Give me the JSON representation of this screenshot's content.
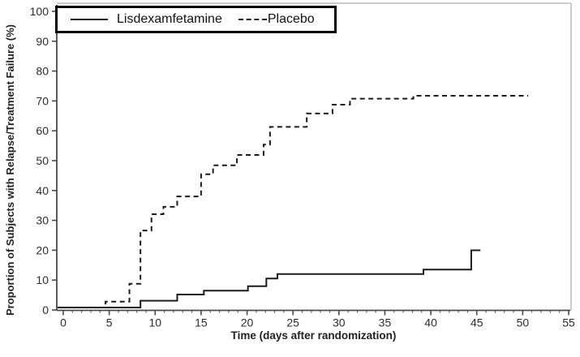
{
  "chart_data": {
    "type": "line",
    "subtype": "kaplan-meier-step",
    "title": "",
    "xlabel": "Time (days after randomization)",
    "ylabel": "Proportion of Subjects with Relapse/Treatment Failure (%)",
    "xlim": [
      0,
      55
    ],
    "ylim": [
      0,
      100
    ],
    "x_ticks": [
      0,
      5,
      10,
      15,
      20,
      25,
      30,
      35,
      40,
      45,
      50,
      55
    ],
    "x_minor_tick_step": 1,
    "y_ticks": [
      0,
      10,
      20,
      30,
      40,
      50,
      60,
      70,
      80,
      90,
      100
    ],
    "grid": false,
    "legend_position": "top-left-inside",
    "axis_color": "#4a4a4a",
    "tick_label_color": "#2e2e2e",
    "line_color": "#1c1c1c",
    "frame_color": "#bcbcbc",
    "series": [
      {
        "name": "Lisdexamfetamine",
        "line_style": "solid",
        "points": [
          [
            0,
            0
          ],
          [
            8.4,
            2.3
          ],
          [
            12.4,
            4.4
          ],
          [
            15.3,
            5.7
          ],
          [
            20.1,
            7.2
          ],
          [
            22.1,
            9.8
          ],
          [
            23.3,
            11.3
          ],
          [
            39.2,
            12.8
          ],
          [
            44.4,
            19.3
          ],
          [
            45.4,
            19.3
          ]
        ]
      },
      {
        "name": "Placebo",
        "line_style": "dashed",
        "points": [
          [
            0,
            0
          ],
          [
            4.6,
            2
          ],
          [
            7.2,
            8
          ],
          [
            8.4,
            26
          ],
          [
            9.6,
            31.5
          ],
          [
            10.9,
            34
          ],
          [
            12.4,
            37.5
          ],
          [
            15,
            45
          ],
          [
            16.3,
            48
          ],
          [
            18.9,
            51.5
          ],
          [
            21.8,
            55
          ],
          [
            22.5,
            61
          ],
          [
            26.5,
            65.5
          ],
          [
            29.3,
            68.5
          ],
          [
            31.2,
            70.5
          ],
          [
            38.1,
            71.5
          ],
          [
            50.6,
            71.5
          ]
        ]
      }
    ]
  },
  "legend": {
    "items": [
      {
        "label": "Lisdexamfetamine"
      },
      {
        "label": "Placebo"
      }
    ]
  }
}
